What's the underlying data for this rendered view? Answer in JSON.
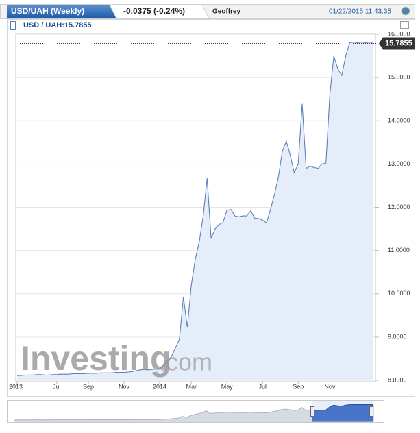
{
  "chart_data": {
    "type": "line",
    "title": "USD/UAH (Weekly)",
    "change": "-0.0375 (-0.24%)",
    "user": "Geoffrey",
    "timestamp": "01/22/2015 11:43:35",
    "legend_label": "USD / UAH:15.7855",
    "last_value_label": "15.7855",
    "watermark": {
      "main": "Investing",
      "suffix": ".com"
    },
    "color": "#5b80b8",
    "categories": [
      "2013",
      null,
      null,
      null,
      null,
      null,
      null,
      null,
      null,
      null,
      "Jul",
      null,
      null,
      null,
      null,
      null,
      null,
      null,
      "Sep",
      null,
      null,
      null,
      null,
      null,
      null,
      null,
      null,
      "Nov",
      null,
      null,
      null,
      null,
      null,
      null,
      null,
      null,
      "2014",
      null,
      null,
      null,
      null,
      null,
      null,
      null,
      "Mar",
      null,
      null,
      null,
      null,
      null,
      null,
      null,
      null,
      "May",
      null,
      null,
      null,
      null,
      null,
      null,
      null,
      null,
      "Jul",
      null,
      null,
      null,
      null,
      null,
      null,
      null,
      null,
      "Sep",
      null,
      null,
      null,
      null,
      null,
      null,
      null,
      "Nov",
      null,
      null,
      null,
      null,
      null,
      null,
      null,
      null,
      null,
      null,
      null
    ],
    "values": [
      8.11,
      8.11,
      8.12,
      8.12,
      8.12,
      8.13,
      8.13,
      8.12,
      8.12,
      8.13,
      8.13,
      8.14,
      8.14,
      8.14,
      8.15,
      8.15,
      8.15,
      8.15,
      8.16,
      8.16,
      8.16,
      8.17,
      8.17,
      8.17,
      8.17,
      8.18,
      8.18,
      8.18,
      8.19,
      8.2,
      8.22,
      8.24,
      8.25,
      8.24,
      8.25,
      8.26,
      8.27,
      8.35,
      8.45,
      8.55,
      8.75,
      8.95,
      9.93,
      9.22,
      10.2,
      10.8,
      11.2,
      11.8,
      12.67,
      11.28,
      11.5,
      11.6,
      11.65,
      11.93,
      11.95,
      11.8,
      11.78,
      11.8,
      11.8,
      11.92,
      11.75,
      11.74,
      11.7,
      11.64,
      11.95,
      12.3,
      12.7,
      13.3,
      13.53,
      13.2,
      12.8,
      13.0,
      14.39,
      12.9,
      12.95,
      12.92,
      12.9,
      13.0,
      13.02,
      14.6,
      15.5,
      15.2,
      15.05,
      15.5,
      15.8,
      15.82,
      15.8,
      15.82,
      15.8,
      15.82,
      15.7855
    ],
    "ylim": [
      8,
      16
    ],
    "yticks": [
      {
        "value": 8,
        "label": "8.0000"
      },
      {
        "value": 9,
        "label": "9.0000"
      },
      {
        "value": 10,
        "label": "10.0000"
      },
      {
        "value": 11,
        "label": "11.0000"
      },
      {
        "value": 12,
        "label": "12.0000"
      },
      {
        "value": 13,
        "label": "13.0000"
      },
      {
        "value": 14,
        "label": "14.0000"
      },
      {
        "value": 15,
        "label": "15.0000"
      },
      {
        "value": 16,
        "label": "16.0000"
      }
    ],
    "grid": true
  }
}
